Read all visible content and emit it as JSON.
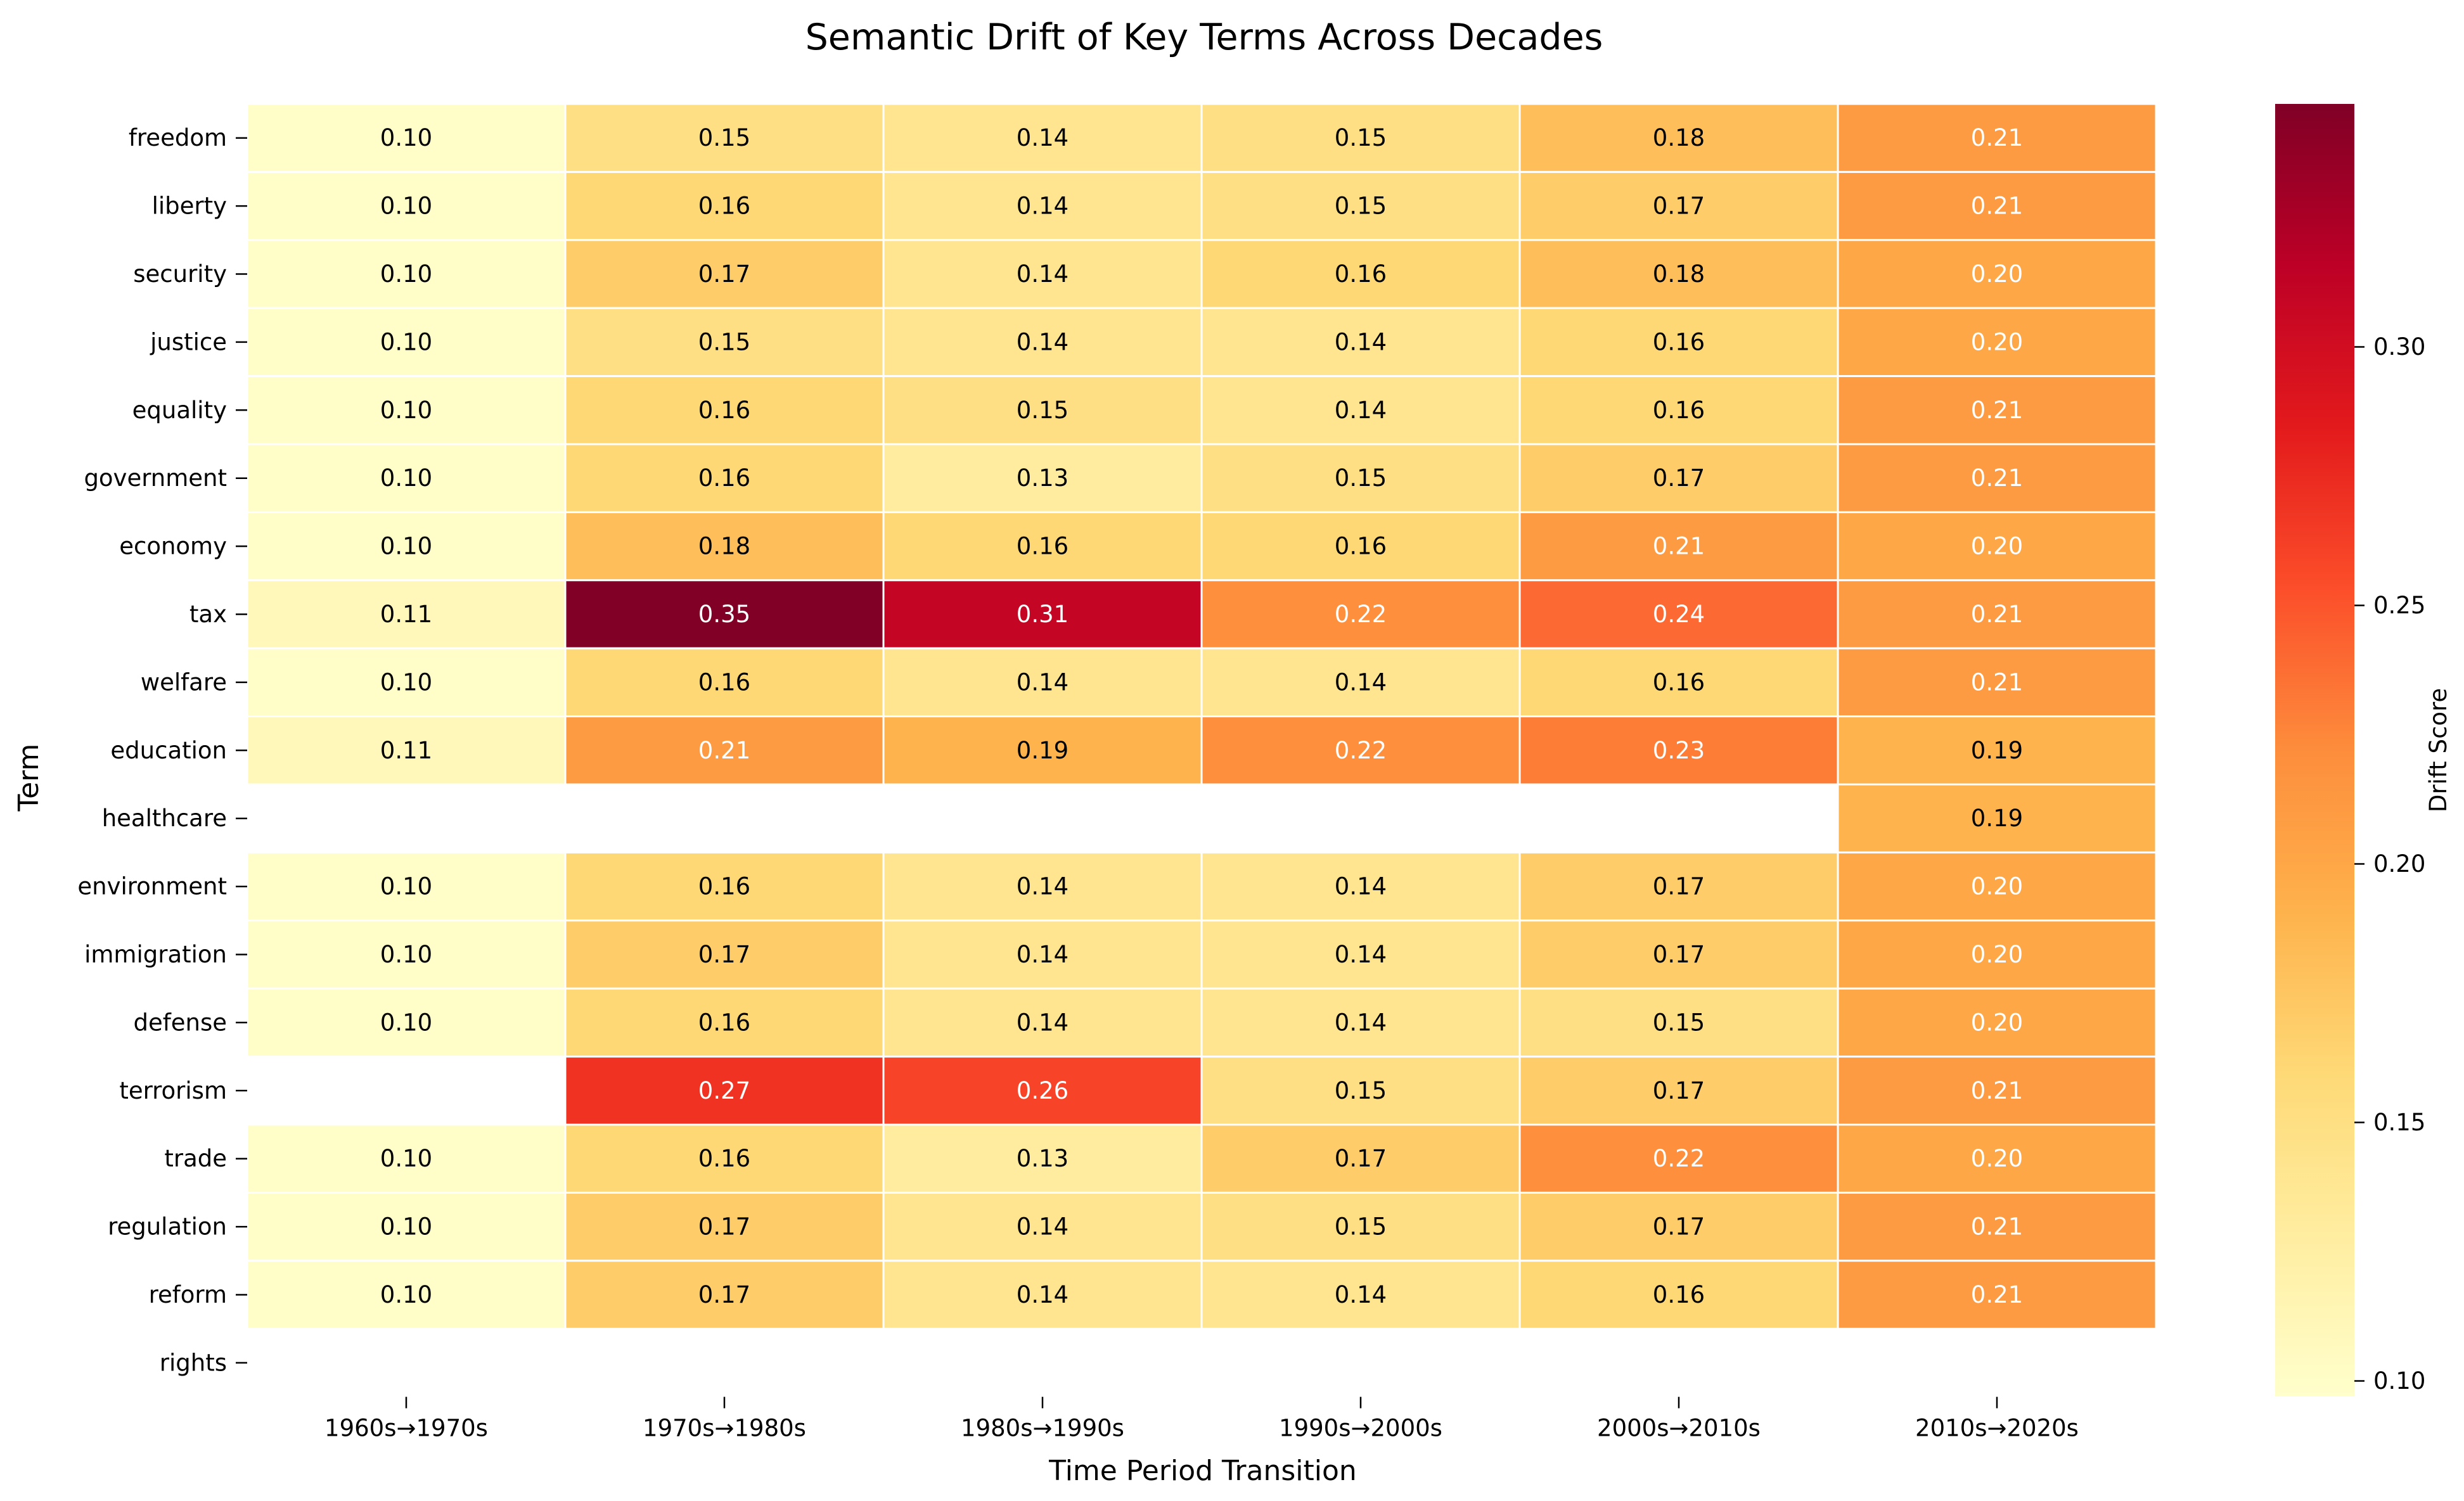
{
  "chart_data": {
    "type": "heatmap",
    "title": "Semantic Drift of Key Terms Across Decades",
    "xlabel": "Time Period Transition",
    "ylabel": "Term",
    "colorbar_label": "Drift Score",
    "colormap": "YlOrRd",
    "value_range": [
      0.097,
      0.347
    ],
    "colorbar_ticks": [
      "0.10",
      "0.15",
      "0.20",
      "0.25",
      "0.30"
    ],
    "colorbar_tick_values": [
      0.1,
      0.15,
      0.2,
      0.25,
      0.3
    ],
    "columns": [
      "1960s→1970s",
      "1970s→1980s",
      "1980s→1990s",
      "1990s→2000s",
      "2000s→2010s",
      "2010s→2020s"
    ],
    "rows": [
      {
        "term": "freedom",
        "values": [
          0.1,
          0.15,
          0.14,
          0.15,
          0.18,
          0.21
        ]
      },
      {
        "term": "liberty",
        "values": [
          0.1,
          0.16,
          0.14,
          0.15,
          0.17,
          0.21
        ]
      },
      {
        "term": "security",
        "values": [
          0.1,
          0.17,
          0.14,
          0.16,
          0.18,
          0.2
        ]
      },
      {
        "term": "justice",
        "values": [
          0.1,
          0.15,
          0.14,
          0.14,
          0.16,
          0.2
        ]
      },
      {
        "term": "equality",
        "values": [
          0.1,
          0.16,
          0.15,
          0.14,
          0.16,
          0.21
        ]
      },
      {
        "term": "government",
        "values": [
          0.1,
          0.16,
          0.13,
          0.15,
          0.17,
          0.21
        ]
      },
      {
        "term": "economy",
        "values": [
          0.1,
          0.18,
          0.16,
          0.16,
          0.21,
          0.2
        ]
      },
      {
        "term": "tax",
        "values": [
          0.11,
          0.35,
          0.31,
          0.22,
          0.24,
          0.21
        ]
      },
      {
        "term": "welfare",
        "values": [
          0.1,
          0.16,
          0.14,
          0.14,
          0.16,
          0.21
        ]
      },
      {
        "term": "education",
        "values": [
          0.11,
          0.21,
          0.19,
          0.22,
          0.23,
          0.19
        ]
      },
      {
        "term": "healthcare",
        "values": [
          null,
          null,
          null,
          null,
          null,
          0.19
        ]
      },
      {
        "term": "environment",
        "values": [
          0.1,
          0.16,
          0.14,
          0.14,
          0.17,
          0.2
        ]
      },
      {
        "term": "immigration",
        "values": [
          0.1,
          0.17,
          0.14,
          0.14,
          0.17,
          0.2
        ]
      },
      {
        "term": "defense",
        "values": [
          0.1,
          0.16,
          0.14,
          0.14,
          0.15,
          0.2
        ]
      },
      {
        "term": "terrorism",
        "values": [
          null,
          0.27,
          0.26,
          0.15,
          0.17,
          0.21
        ]
      },
      {
        "term": "trade",
        "values": [
          0.1,
          0.16,
          0.13,
          0.17,
          0.22,
          0.2
        ]
      },
      {
        "term": "regulation",
        "values": [
          0.1,
          0.17,
          0.14,
          0.15,
          0.17,
          0.21
        ]
      },
      {
        "term": "reform",
        "values": [
          0.1,
          0.17,
          0.14,
          0.14,
          0.16,
          0.21
        ]
      },
      {
        "term": "rights",
        "values": [
          null,
          null,
          null,
          null,
          null,
          null
        ]
      }
    ]
  }
}
